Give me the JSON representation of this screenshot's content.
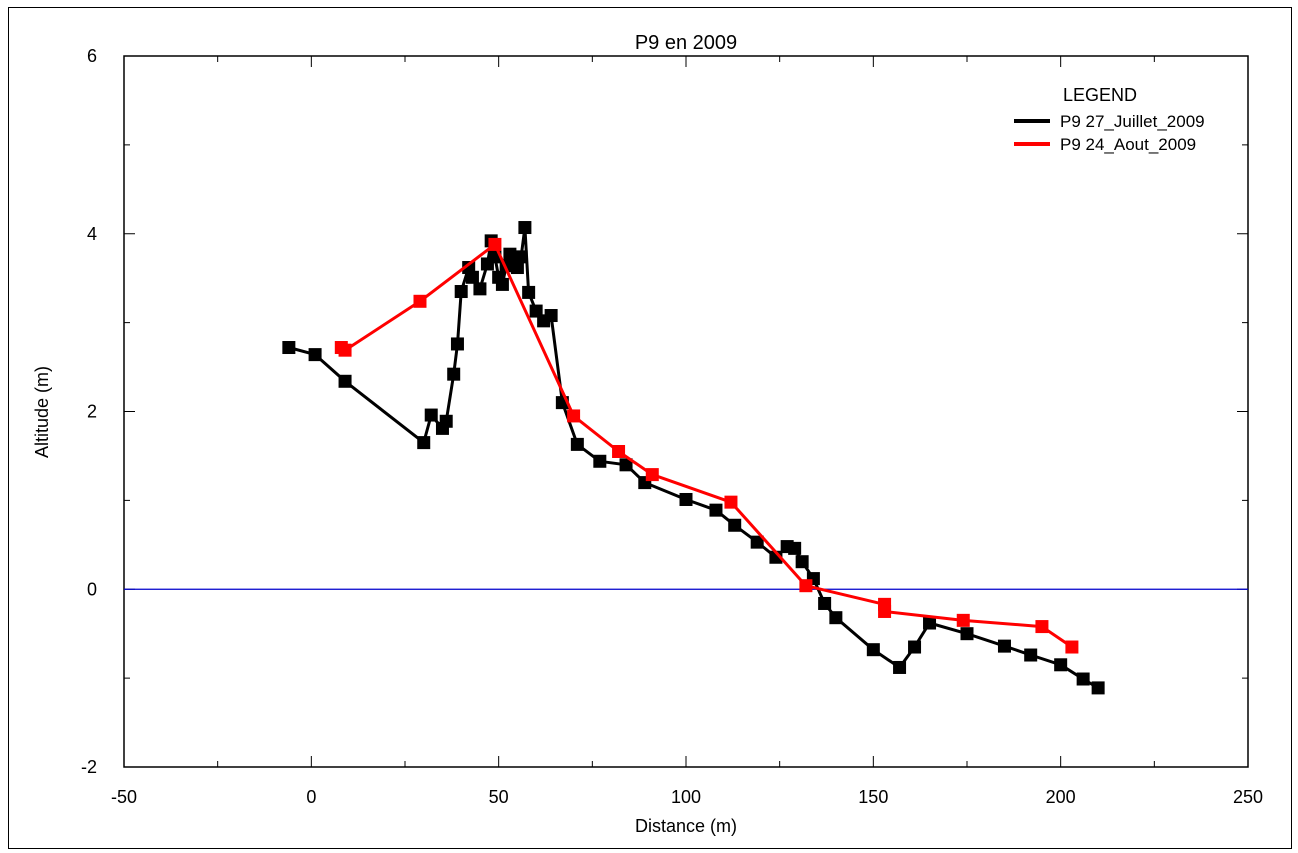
{
  "chart_data": {
    "type": "line",
    "title": "P9 en 2009",
    "xlabel": "Distance (m)",
    "ylabel": "Altitude (m)",
    "xlim": [
      -50,
      250
    ],
    "ylim": [
      -2,
      6
    ],
    "x_major_ticks": [
      -50,
      0,
      50,
      100,
      150,
      200,
      250
    ],
    "y_major_ticks": [
      -2,
      0,
      2,
      4,
      6
    ],
    "reference_line": {
      "y": 0,
      "color": "#0000cc"
    },
    "grid": false,
    "legend": {
      "title": "LEGEND",
      "title_color": "#0000ff",
      "placement": "top-right"
    },
    "series": [
      {
        "name": "P9 27_Juillet_2009",
        "color": "#000000",
        "marker": "square",
        "x": [
          -6,
          1,
          9,
          30,
          32,
          35,
          36,
          38,
          39,
          40,
          42,
          43,
          45,
          47,
          48,
          49,
          50,
          51,
          52,
          53,
          55,
          56,
          57,
          58,
          60,
          62,
          64,
          67,
          71,
          77,
          84,
          89,
          100,
          108,
          113,
          119,
          124,
          127,
          129,
          131,
          134,
          137,
          140,
          150,
          157,
          161,
          165,
          175,
          185,
          192,
          200,
          206,
          210
        ],
        "y": [
          2.72,
          2.64,
          2.34,
          1.65,
          1.96,
          1.81,
          1.89,
          2.42,
          2.76,
          3.35,
          3.62,
          3.51,
          3.38,
          3.66,
          3.92,
          3.74,
          3.51,
          3.43,
          3.64,
          3.77,
          3.62,
          3.74,
          4.07,
          3.34,
          3.13,
          3.02,
          3.08,
          2.1,
          1.63,
          1.44,
          1.4,
          1.2,
          1.01,
          0.89,
          0.72,
          0.53,
          0.36,
          0.48,
          0.46,
          0.31,
          0.12,
          -0.16,
          -0.32,
          -0.68,
          -0.88,
          -0.65,
          -0.38,
          -0.5,
          -0.64,
          -0.74,
          -0.85,
          -1.01,
          -1.11
        ]
      },
      {
        "name": "P9 24_Aout_2009",
        "color": "#ff0000",
        "marker": "square",
        "x": [
          8,
          9,
          29,
          49,
          70,
          82,
          91,
          112,
          132,
          153,
          153,
          174,
          195,
          203
        ],
        "y": [
          2.72,
          2.69,
          3.24,
          3.88,
          1.95,
          1.55,
          1.29,
          0.98,
          0.04,
          -0.17,
          -0.25,
          -0.35,
          -0.42,
          -0.65
        ]
      }
    ]
  }
}
